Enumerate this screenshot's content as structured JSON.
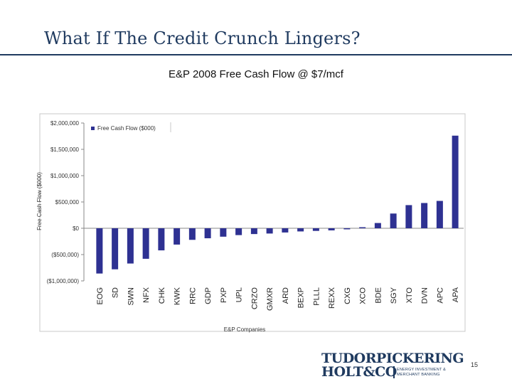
{
  "slide": {
    "title": "What If The Credit Crunch Lingers?",
    "page_number": "15"
  },
  "logo": {
    "line1": "TUDORPICKERING",
    "line2": "HOLT&CO",
    "subtitle": "ENERGY INVESTMENT & MERCHANT BANKING"
  },
  "colors": {
    "bar": "#2e3192",
    "title": "#1f3a5f",
    "axis": "#888888"
  },
  "chart_data": {
    "type": "bar",
    "title": "E&P 2008 Free Cash Flow @ $7/mcf",
    "xlabel": "E&P Companies",
    "ylabel": "Free Cash Flow ($000)",
    "legend": "Free Cash Flow ($000)",
    "legend_position": "top-left",
    "ylim": [
      -1000000,
      2000000
    ],
    "yticks": [
      -1000000,
      -500000,
      0,
      500000,
      1000000,
      1500000,
      2000000
    ],
    "ytick_labels": [
      "($1,000,000)",
      "($500,000)",
      "$0",
      "$500,000",
      "$1,000,000",
      "$1,500,000",
      "$2,000,000"
    ],
    "grid": false,
    "categories": [
      "EOG",
      "SD",
      "SWN",
      "NFX",
      "CHK",
      "KWK",
      "RRC",
      "GDP",
      "PXP",
      "UPL",
      "CRZO",
      "GMXR",
      "ARD",
      "BEXP",
      "PLLL",
      "REXX",
      "CXG",
      "XCO",
      "BDE",
      "SGY",
      "XTO",
      "DVN",
      "APC",
      "APA"
    ],
    "values": [
      -860000,
      -780000,
      -670000,
      -580000,
      -420000,
      -310000,
      -220000,
      -190000,
      -160000,
      -130000,
      -110000,
      -100000,
      -80000,
      -60000,
      -50000,
      -40000,
      -20000,
      20000,
      100000,
      280000,
      440000,
      480000,
      520000,
      1760000
    ]
  }
}
